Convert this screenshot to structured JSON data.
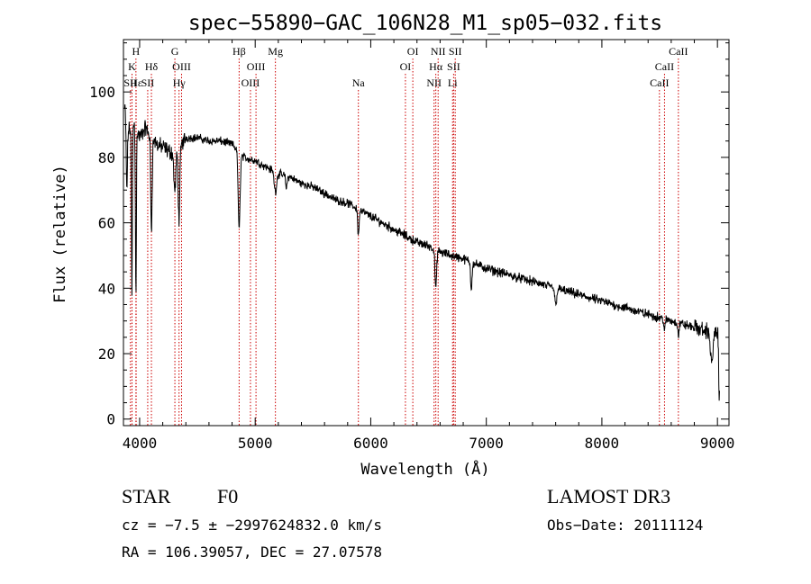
{
  "chart_data": {
    "type": "line",
    "title": "spec−55890−GAC_106N28_M1_sp05−032.fits",
    "xlabel": "Wavelength (Å)",
    "ylabel": "Flux (relative)",
    "xlim": [
      3860,
      9100
    ],
    "ylim": [
      -2,
      116
    ],
    "xticks": [
      4000,
      5000,
      6000,
      7000,
      8000,
      9000
    ],
    "xtick_labels": [
      "4000",
      "5000",
      "6000",
      "7000",
      "8000",
      "9000"
    ],
    "yticks": [
      0,
      20,
      40,
      60,
      80,
      100
    ],
    "ytick_labels": [
      "0",
      "20",
      "40",
      "60",
      "80",
      "100"
    ],
    "grid": false,
    "line_color": "#000000",
    "marker_color": "#cc0000",
    "continuum": [
      [
        3870,
        95
      ],
      [
        3900,
        88
      ],
      [
        3950,
        90
      ],
      [
        4000,
        86
      ],
      [
        4050,
        89
      ],
      [
        4100,
        86
      ],
      [
        4150,
        84
      ],
      [
        4200,
        83
      ],
      [
        4250,
        82
      ],
      [
        4300,
        81
      ],
      [
        4400,
        86
      ],
      [
        4500,
        86
      ],
      [
        4600,
        85
      ],
      [
        4700,
        85
      ],
      [
        4800,
        84
      ],
      [
        4900,
        80
      ],
      [
        5000,
        79
      ],
      [
        5100,
        77
      ],
      [
        5200,
        75
      ],
      [
        5300,
        74
      ],
      [
        5400,
        72
      ],
      [
        5500,
        71
      ],
      [
        5600,
        69
      ],
      [
        5700,
        67
      ],
      [
        5800,
        66
      ],
      [
        5900,
        64
      ],
      [
        6000,
        62
      ],
      [
        6100,
        60
      ],
      [
        6200,
        58
      ],
      [
        6300,
        56
      ],
      [
        6400,
        54
      ],
      [
        6500,
        53
      ],
      [
        6600,
        51
      ],
      [
        6700,
        50
      ],
      [
        6800,
        49
      ],
      [
        7000,
        46
      ],
      [
        7200,
        44
      ],
      [
        7400,
        42
      ],
      [
        7600,
        40
      ],
      [
        7800,
        38
      ],
      [
        8000,
        36
      ],
      [
        8200,
        34
      ],
      [
        8400,
        32
      ],
      [
        8600,
        30
      ],
      [
        8800,
        28
      ],
      [
        9000,
        26
      ],
      [
        9020,
        25
      ]
    ],
    "absorption_features": [
      {
        "center": 3933,
        "depth": 52,
        "width": 4
      },
      {
        "center": 3968,
        "depth": 50,
        "width": 4
      },
      {
        "center": 3889,
        "depth": 20,
        "width": 5
      },
      {
        "center": 4102,
        "depth": 28,
        "width": 6
      },
      {
        "center": 4305,
        "depth": 12,
        "width": 8
      },
      {
        "center": 4341,
        "depth": 22,
        "width": 7
      },
      {
        "center": 4861,
        "depth": 24,
        "width": 8
      },
      {
        "center": 5175,
        "depth": 6,
        "width": 10
      },
      {
        "center": 5270,
        "depth": 4,
        "width": 6
      },
      {
        "center": 5893,
        "depth": 8,
        "width": 6
      },
      {
        "center": 6563,
        "depth": 12,
        "width": 7
      },
      {
        "center": 6870,
        "depth": 8,
        "width": 6
      },
      {
        "center": 7600,
        "depth": 5,
        "width": 8
      },
      {
        "center": 8542,
        "depth": 4,
        "width": 5
      },
      {
        "center": 8662,
        "depth": 4,
        "width": 5
      },
      {
        "center": 8950,
        "depth": 10,
        "width": 10
      },
      {
        "center": 9015,
        "depth": 20,
        "width": 4
      }
    ],
    "line_markers": [
      {
        "label": "H",
        "wavelength": 3968,
        "row": 0
      },
      {
        "label": "K",
        "wavelength": 3934,
        "row": 1
      },
      {
        "label": "Hε",
        "wavelength": 3970,
        "row": 2
      },
      {
        "label": "SII",
        "wavelength": 3920,
        "row": 2
      },
      {
        "label": "Hδ",
        "wavelength": 4102,
        "row": 1
      },
      {
        "label": "SII",
        "wavelength": 4070,
        "row": 2
      },
      {
        "label": "G",
        "wavelength": 4305,
        "row": 0
      },
      {
        "label": "OIII",
        "wavelength": 4363,
        "row": 1
      },
      {
        "label": "Hγ",
        "wavelength": 4341,
        "row": 2
      },
      {
        "label": "Hβ",
        "wavelength": 4861,
        "row": 0
      },
      {
        "label": "OIII",
        "wavelength": 5007,
        "row": 1
      },
      {
        "label": "OIII",
        "wavelength": 4959,
        "row": 2
      },
      {
        "label": "Mg",
        "wavelength": 5175,
        "row": 0
      },
      {
        "label": "Na",
        "wavelength": 5893,
        "row": 2
      },
      {
        "label": "OI",
        "wavelength": 6364,
        "row": 0
      },
      {
        "label": "OI",
        "wavelength": 6300,
        "row": 1
      },
      {
        "label": "NII",
        "wavelength": 6583,
        "row": 0
      },
      {
        "label": "Hα",
        "wavelength": 6563,
        "row": 1
      },
      {
        "label": "NII",
        "wavelength": 6548,
        "row": 2
      },
      {
        "label": "SII",
        "wavelength": 6731,
        "row": 0
      },
      {
        "label": "SII",
        "wavelength": 6717,
        "row": 1
      },
      {
        "label": "Li",
        "wavelength": 6708,
        "row": 2
      },
      {
        "label": "CaII",
        "wavelength": 8662,
        "row": 0
      },
      {
        "label": "CaII",
        "wavelength": 8542,
        "row": 1
      },
      {
        "label": "CaII",
        "wavelength": 8498,
        "row": 2
      }
    ]
  },
  "info": {
    "object_class": "STAR",
    "subclass": "F0",
    "survey": "LAMOST DR3",
    "redshift": "cz = −7.5 ± −2997624832.0 km/s",
    "obs_date": "Obs−Date: 20111124",
    "coords": "RA = 106.39057, DEC =  27.07578"
  }
}
